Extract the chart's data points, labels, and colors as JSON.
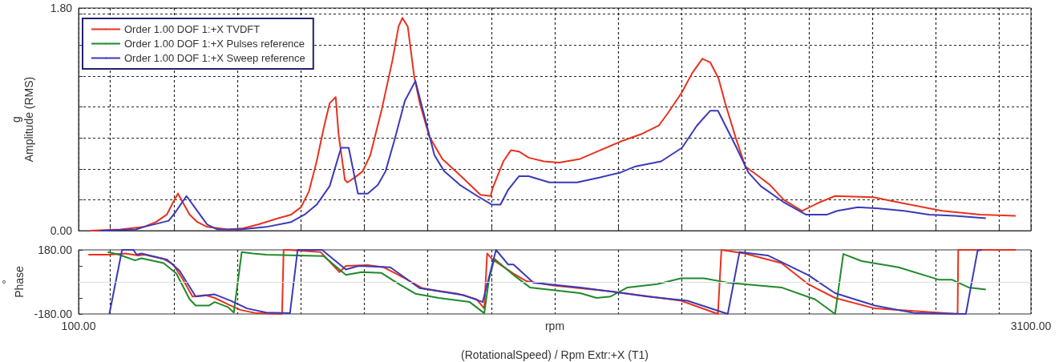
{
  "chart_data": [
    {
      "type": "line",
      "ylabel": "g\nAmplitude (RMS)",
      "xlim": [
        100,
        3100
      ],
      "xticks": [
        {
          "value": 100,
          "label": null
        },
        {
          "value": 200,
          "label": null
        },
        {
          "value": 400,
          "label": null
        },
        {
          "value": 600,
          "label": null
        },
        {
          "value": 800,
          "label": null
        },
        {
          "value": 1000,
          "label": null
        },
        {
          "value": 1200,
          "label": null
        },
        {
          "value": 1400,
          "label": null
        },
        {
          "value": 1600,
          "label": null
        },
        {
          "value": 1800,
          "label": null
        },
        {
          "value": 2000,
          "label": null
        },
        {
          "value": 2200,
          "label": null
        },
        {
          "value": 2400,
          "label": null
        },
        {
          "value": 2600,
          "label": null
        },
        {
          "value": 2800,
          "label": null
        },
        {
          "value": 3000,
          "label": null
        },
        {
          "value": 3100,
          "label": null
        }
      ],
      "ylim": [
        0,
        1.8
      ],
      "yticks": [
        {
          "value": 0,
          "label": "0.00"
        },
        {
          "value": 0.25,
          "label": null
        },
        {
          "value": 0.5,
          "label": null
        },
        {
          "value": 0.75,
          "label": null
        },
        {
          "value": 1,
          "label": null
        },
        {
          "value": 1.25,
          "label": null
        },
        {
          "value": 1.5,
          "label": null
        },
        {
          "value": 1.75,
          "label": null
        },
        {
          "value": 1.8,
          "label": "1.80"
        }
      ],
      "tick_labels": "y",
      "grid": true,
      "legend": "top left",
      "marker": "none",
      "line_style": "solid",
      "series": [
        {
          "name": "Order 1.00 DOF 1:+X TVDFT",
          "color": "#e8321e",
          "x": [
            137,
            232,
            305,
            344,
            378,
            402,
            413,
            428,
            450,
            474,
            505,
            571,
            619,
            666,
            729,
            770,
            801,
            826,
            850,
            874,
            891,
            910,
            919,
            939,
            947,
            970,
            995,
            1019,
            1055,
            1089,
            1108,
            1120,
            1137,
            1157,
            1175,
            1205,
            1246,
            1309,
            1366,
            1398,
            1404,
            1438,
            1462,
            1487,
            1518,
            1566,
            1614,
            1680,
            1743,
            1807,
            1872,
            1928,
            1959,
            2001,
            2032,
            2065,
            2090,
            2116,
            2137,
            2169,
            2200,
            2242,
            2278,
            2321,
            2379,
            2435,
            2483,
            2603,
            2700,
            2820,
            2941,
            3052
          ],
          "values": [
            0,
            0.01,
            0.03,
            0.07,
            0.13,
            0.25,
            0.3,
            0.23,
            0.13,
            0.07,
            0.03,
            0.01,
            0.02,
            0.05,
            0.1,
            0.13,
            0.19,
            0.32,
            0.56,
            0.85,
            1.03,
            1.08,
            0.78,
            0.41,
            0.39,
            0.43,
            0.48,
            0.61,
            0.98,
            1.38,
            1.65,
            1.72,
            1.65,
            1.25,
            1.03,
            0.76,
            0.58,
            0.43,
            0.29,
            0.28,
            0.34,
            0.56,
            0.65,
            0.64,
            0.59,
            0.56,
            0.55,
            0.58,
            0.65,
            0.72,
            0.78,
            0.85,
            0.96,
            1.12,
            1.27,
            1.39,
            1.36,
            1.23,
            1.03,
            0.76,
            0.52,
            0.44,
            0.37,
            0.25,
            0.16,
            0.23,
            0.28,
            0.27,
            0.22,
            0.16,
            0.13,
            0.12
          ]
        },
        {
          "name": "Order 1.00 DOF 1:+X Pulses reference",
          "color": "#1f8a2a"
        },
        {
          "name": "Order 1.00 DOF 1:+X Sweep reference",
          "color": "#3a3ab8",
          "x": [
            168,
            281,
            305,
            384,
            408,
            440,
            474,
            505,
            537,
            609,
            691,
            770,
            812,
            850,
            891,
            927,
            951,
            980,
            1011,
            1043,
            1067,
            1096,
            1128,
            1161,
            1188,
            1221,
            1252,
            1301,
            1356,
            1402,
            1429,
            1453,
            1487,
            1518,
            1583,
            1670,
            1743,
            1807,
            1855,
            1935,
            2001,
            2048,
            2090,
            2114,
            2169,
            2210,
            2249,
            2321,
            2391,
            2458,
            2490,
            2555,
            2620,
            2700,
            2779,
            2861,
            2958
          ],
          "values": [
            0,
            0.01,
            0.03,
            0.08,
            0.16,
            0.28,
            0.16,
            0.05,
            0.01,
            0.01,
            0.03,
            0.07,
            0.13,
            0.21,
            0.36,
            0.67,
            0.67,
            0.3,
            0.3,
            0.37,
            0.48,
            0.74,
            1.05,
            1.21,
            0.94,
            0.61,
            0.48,
            0.37,
            0.28,
            0.21,
            0.21,
            0.33,
            0.44,
            0.44,
            0.39,
            0.39,
            0.43,
            0.47,
            0.52,
            0.56,
            0.67,
            0.85,
            0.97,
            0.97,
            0.69,
            0.47,
            0.36,
            0.23,
            0.13,
            0.13,
            0.16,
            0.19,
            0.18,
            0.16,
            0.13,
            0.12,
            0.1
          ]
        }
      ]
    },
    {
      "type": "line",
      "ylabel": "°\nPhase",
      "xlabel": "(RotationalSpeed) / Rpm Extr:+X (T1)",
      "xlim": [
        100,
        3100
      ],
      "xticks": [
        {
          "value": 100,
          "label": "100.00"
        },
        {
          "value": 200,
          "label": null
        },
        {
          "value": 400,
          "label": null
        },
        {
          "value": 600,
          "label": null
        },
        {
          "value": 800,
          "label": null
        },
        {
          "value": 1000,
          "label": null
        },
        {
          "value": 1200,
          "label": null
        },
        {
          "value": 1400,
          "label": null
        },
        {
          "value": 1600,
          "label": "rpm"
        },
        {
          "value": 1800,
          "label": null
        },
        {
          "value": 2000,
          "label": null
        },
        {
          "value": 2200,
          "label": null
        },
        {
          "value": 2400,
          "label": null
        },
        {
          "value": 2600,
          "label": null
        },
        {
          "value": 2800,
          "label": null
        },
        {
          "value": 3000,
          "label": null
        },
        {
          "value": 3100,
          "label": "3100.00"
        }
      ],
      "ylim": [
        -180,
        180
      ],
      "yticks": [
        {
          "value": -180,
          "label": "-180.00"
        },
        {
          "value": -90,
          "label": null
        },
        {
          "value": 0,
          "label": null
        },
        {
          "value": 90,
          "label": null
        },
        {
          "value": 180,
          "label": "180.00"
        }
      ],
      "grid": "x",
      "ref_lines": [
        {
          "axis": "y",
          "value": 0,
          "label": null,
          "color": "#dddddd"
        }
      ],
      "marker": "none",
      "line_style": "solid",
      "series": [
        {
          "color": "#e8321e",
          "x": [
            131,
            197,
            247,
            288,
            308,
            368,
            398,
            428,
            459,
            500,
            529,
            570,
            609,
            660,
            741,
            746,
            761,
            862,
            922,
            942,
            1011,
            1062,
            1132,
            1183,
            1234,
            1294,
            1354,
            1378,
            1387,
            1402,
            1470,
            1511,
            1596,
            1786,
            1998,
            2114,
            2125,
            2198,
            2314,
            2398,
            2483,
            2608,
            2869,
            2871,
            3052
          ],
          "values": [
            153,
            153,
            160,
            149,
            153,
            129,
            98,
            16,
            -82,
            -74,
            -90,
            -125,
            -157,
            -176,
            -180,
            180,
            180,
            168,
            55,
            90,
            94,
            82,
            16,
            -35,
            -51,
            -66,
            -98,
            -149,
            160,
            129,
            47,
            4,
            -20,
            -55,
            -106,
            -180,
            180,
            160,
            106,
            -12,
            -90,
            -149,
            -180,
            180,
            180
          ]
        },
        {
          "color": "#1f8a2a",
          "x": [
            192,
            228,
            278,
            298,
            368,
            408,
            450,
            469,
            510,
            529,
            570,
            589,
            614,
            649,
            691,
            872,
            942,
            992,
            1053,
            1113,
            1161,
            1234,
            1332,
            1378,
            1393,
            1410,
            1470,
            1522,
            1680,
            1732,
            1776,
            1829,
            1923,
            1998,
            2070,
            2145,
            2314,
            2420,
            2483,
            2509,
            2567,
            2683,
            2811,
            2852,
            2904,
            2958
          ],
          "values": [
            168,
            153,
            121,
            133,
            106,
            47,
            -98,
            -133,
            -133,
            -113,
            -141,
            -172,
            168,
            160,
            153,
            145,
            39,
            55,
            51,
            -16,
            -66,
            -90,
            -113,
            -176,
            16,
            129,
            39,
            -31,
            -63,
            -90,
            -82,
            -31,
            -12,
            20,
            20,
            -4,
            -31,
            -98,
            -180,
            157,
            117,
            82,
            12,
            12,
            -31,
            -43
          ]
        },
        {
          "color": "#3a3ab8",
          "x": [
            197,
            237,
            273,
            283,
            298,
            379,
            418,
            469,
            529,
            580,
            631,
            691,
            766,
            790,
            867,
            942,
            982,
            1082,
            1174,
            1313,
            1373,
            1415,
            1453,
            1470,
            1533,
            1680,
            1892,
            2018,
            2145,
            2182,
            2271,
            2398,
            2483,
            2608,
            2736,
            2895,
            2932,
            2946
          ],
          "values": [
            -180,
            180,
            180,
            153,
            160,
            125,
            63,
            -82,
            -70,
            -106,
            -149,
            -172,
            -176,
            180,
            180,
            70,
            90,
            82,
            -35,
            -74,
            -113,
            180,
            98,
            98,
            -4,
            -31,
            -82,
            -106,
            -180,
            168,
            149,
            39,
            -63,
            -133,
            -176,
            -180,
            176,
            180
          ]
        }
      ]
    }
  ]
}
